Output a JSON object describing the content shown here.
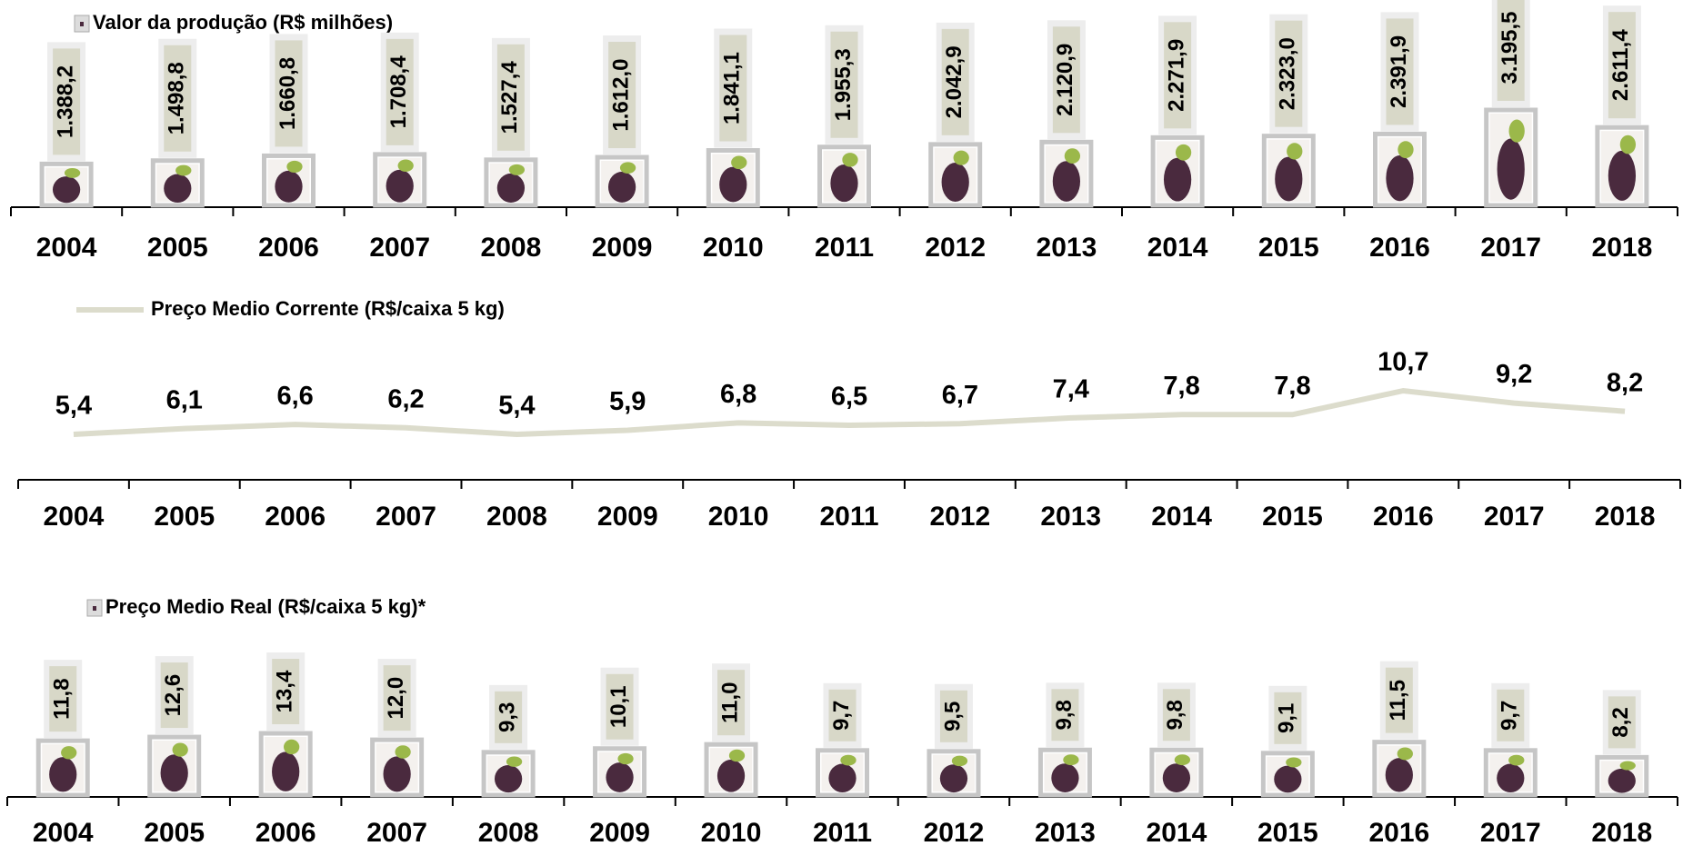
{
  "chart_data": [
    {
      "type": "bar",
      "categories": [
        "2004",
        "2005",
        "2006",
        "2007",
        "2008",
        "2009",
        "2010",
        "2011",
        "2012",
        "2013",
        "2014",
        "2015",
        "2016",
        "2017",
        "2018"
      ],
      "series": [
        {
          "name": "Valor da produção (R$ milhões)",
          "color": "#4a2a3e",
          "values": [
            1388.2,
            1498.8,
            1660.8,
            1708.4,
            1527.4,
            1612.0,
            1841.1,
            1955.3,
            2042.9,
            2120.9,
            2271.9,
            2323.0,
            2391.9,
            3195.5,
            2611.4
          ],
          "value_labels": [
            "1.388,2",
            "1.498,8",
            "1.660,8",
            "1.708,4",
            "1.527,4",
            "1.612,0",
            "1.841,1",
            "1.955,3",
            "2.042,9",
            "2.120,9",
            "2.271,9",
            "2.323,0",
            "2.391,9",
            "3.195,5",
            "2.611,4"
          ]
        }
      ]
    },
    {
      "type": "line",
      "categories": [
        "2004",
        "2005",
        "2006",
        "2007",
        "2008",
        "2009",
        "2010",
        "2011",
        "2012",
        "2013",
        "2014",
        "2015",
        "2016",
        "2017",
        "2018"
      ],
      "series": [
        {
          "name": "Preço Medio Corrente (R$/caixa 5 kg)",
          "color": "#dcdccc",
          "values": [
            5.4,
            6.1,
            6.6,
            6.2,
            5.4,
            5.9,
            6.8,
            6.5,
            6.7,
            7.4,
            7.8,
            7.8,
            10.7,
            9.2,
            8.2
          ],
          "value_labels": [
            "5,4",
            "6,1",
            "6,6",
            "6,2",
            "5,4",
            "5,9",
            "6,8",
            "6,5",
            "6,7",
            "7,4",
            "7,8",
            "7,8",
            "10,7",
            "9,2",
            "8,2"
          ]
        }
      ]
    },
    {
      "type": "bar",
      "categories": [
        "2004",
        "2005",
        "2006",
        "2007",
        "2008",
        "2009",
        "2010",
        "2011",
        "2012",
        "2013",
        "2014",
        "2015",
        "2016",
        "2017",
        "2018"
      ],
      "series": [
        {
          "name": "Preço Medio Real (R$/caixa 5 kg)*",
          "color": "#4a2a3e",
          "values": [
            11.8,
            12.6,
            13.4,
            12.0,
            9.3,
            10.1,
            11.0,
            9.7,
            9.5,
            9.8,
            9.8,
            9.1,
            11.5,
            9.7,
            8.2
          ],
          "value_labels": [
            "11,8",
            "12,6",
            "13,4",
            "12,0",
            "9,3",
            "10,1",
            "11,0",
            "9,7",
            "9,5",
            "9,8",
            "9,8",
            "9,1",
            "11,5",
            "9,7",
            "8,2"
          ]
        }
      ]
    }
  ]
}
